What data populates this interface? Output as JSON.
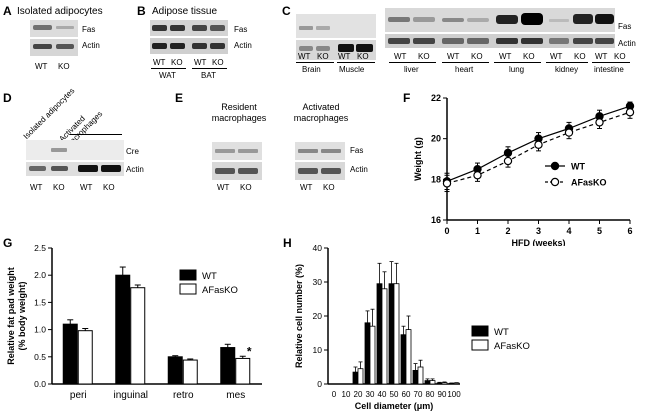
{
  "panel_A": {
    "letter": "A",
    "title": "Isolated adipocytes",
    "bands": [
      "Fas",
      "Actin"
    ],
    "lanes": [
      "WT",
      "KO"
    ]
  },
  "panel_B": {
    "letter": "B",
    "title": "Adipose tissue",
    "bands": [
      "Fas",
      "Actin"
    ],
    "lanes": [
      "WT",
      "KO",
      "WT",
      "KO"
    ],
    "groups": [
      "WAT",
      "BAT"
    ]
  },
  "panel_C": {
    "letter": "C",
    "bands": [
      "Fas",
      "Actin"
    ],
    "lanes": [
      "WT",
      "KO",
      "WT",
      "KO",
      "WT",
      "KO",
      "WT",
      "KO",
      "WT",
      "KO",
      "WT",
      "KO",
      "WT",
      "KO"
    ],
    "tissues": [
      "Brain",
      "Muscle",
      "liver",
      "heart",
      "lung",
      "kidney",
      "intestine"
    ]
  },
  "panel_D": {
    "letter": "D",
    "groups": [
      "Isolated adipocytes",
      "Activated macrophages"
    ],
    "bands": [
      "Cre",
      "Actin"
    ],
    "lanes": [
      "WT",
      "KO",
      "WT",
      "KO"
    ]
  },
  "panel_E": {
    "letter": "E",
    "groups": [
      "Resident macrophages",
      "Activated macrophages"
    ],
    "bands": [
      "Fas",
      "Actin"
    ],
    "lanes": [
      "WT",
      "KO",
      "WT",
      "KO"
    ]
  },
  "chart_data": [
    {
      "id": "F",
      "letter": "F",
      "type": "line",
      "xlabel": "HFD (weeks)",
      "ylabel": "Weight (g)",
      "xlim": [
        0,
        6
      ],
      "ylim": [
        16,
        22
      ],
      "xticks": [
        0,
        1,
        2,
        3,
        4,
        5,
        6
      ],
      "yticks": [
        16,
        18,
        20,
        22
      ],
      "legend": "inside-right",
      "grid": false,
      "x": [
        0,
        1,
        2,
        3,
        4,
        5,
        6
      ],
      "series": [
        {
          "name": "WT",
          "values": [
            17.9,
            18.5,
            19.3,
            20.0,
            20.5,
            21.1,
            21.6
          ],
          "errors": [
            0.4,
            0.3,
            0.3,
            0.3,
            0.3,
            0.3,
            0.2
          ],
          "color": "#000000",
          "marker": "filled-circle",
          "line": "solid"
        },
        {
          "name": "AFasKO",
          "values": [
            17.8,
            18.2,
            18.9,
            19.7,
            20.3,
            20.8,
            21.3
          ],
          "errors": [
            0.4,
            0.3,
            0.3,
            0.3,
            0.3,
            0.3,
            0.3
          ],
          "color": "#000000",
          "marker": "open-circle",
          "line": "dashed"
        }
      ]
    },
    {
      "id": "G",
      "letter": "G",
      "type": "bar",
      "xlabel": "",
      "ylabel": "Relative fat pad weight\n(% body weight)",
      "ylim": [
        0,
        2.5
      ],
      "yticks": [
        0.0,
        0.5,
        1.0,
        1.5,
        2.0,
        2.5
      ],
      "ytick_labels": [
        "0.0",
        "0.5",
        "1.0",
        "1.5",
        "2.0",
        "2.5"
      ],
      "categories": [
        "peri",
        "inguinal",
        "retro",
        "mes"
      ],
      "legend": "top-right",
      "grid": false,
      "series": [
        {
          "name": "WT",
          "values": [
            1.1,
            2.0,
            0.5,
            0.67
          ],
          "errors": [
            0.08,
            0.15,
            0.02,
            0.06
          ],
          "color": "#000000"
        },
        {
          "name": "AFasKO",
          "values": [
            0.98,
            1.77,
            0.44,
            0.47
          ],
          "errors": [
            0.04,
            0.05,
            0.02,
            0.04
          ],
          "color": "#ffffff"
        }
      ],
      "annotations": [
        {
          "category": "mes",
          "text": "*"
        }
      ]
    },
    {
      "id": "H",
      "letter": "H",
      "type": "bar",
      "xlabel": "Cell diameter (μm)",
      "ylabel": "Relative cell number (%)",
      "ylim": [
        0,
        40
      ],
      "yticks": [
        0,
        10,
        20,
        30,
        40
      ],
      "categories": [
        "0",
        "10",
        "20",
        "30",
        "40",
        "50",
        "60",
        "70",
        "80",
        "90",
        "100"
      ],
      "legend": "right",
      "grid": false,
      "series": [
        {
          "name": "WT",
          "values": [
            0,
            0,
            3.5,
            18,
            29.5,
            29.5,
            14.5,
            4,
            1,
            0.3,
            0.2
          ],
          "errors": [
            0,
            0,
            1.5,
            3.5,
            6,
            6.5,
            2.5,
            2,
            0.5,
            0.2,
            0.1
          ],
          "color": "#000000"
        },
        {
          "name": "AFasKO",
          "values": [
            0,
            0,
            4.5,
            17,
            28,
            29.5,
            16,
            5,
            1,
            0.4,
            0.3
          ],
          "errors": [
            0,
            0,
            2,
            5,
            5,
            6,
            4,
            2,
            0.5,
            0.2,
            0.1
          ],
          "color": "#ffffff"
        }
      ]
    }
  ]
}
